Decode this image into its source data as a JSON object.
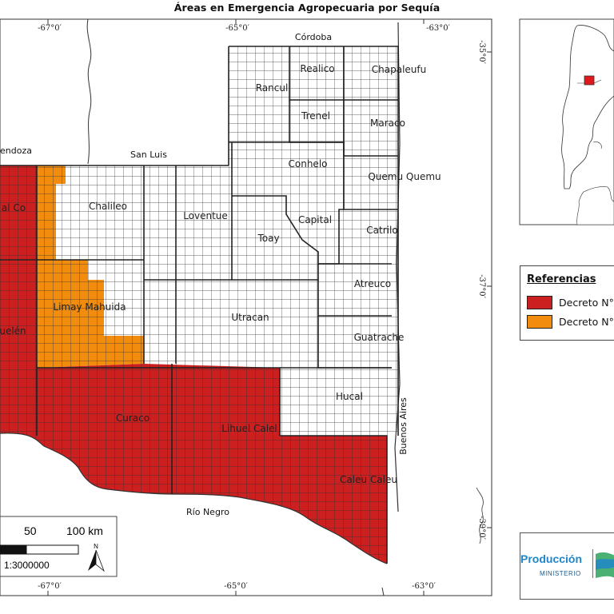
{
  "title": "Áreas en Emergencia Agropecuaria por Sequía",
  "coords": {
    "top": [
      "-67°0′",
      "-65°0′",
      "-63°0′"
    ],
    "bottom": [
      "-67°0′",
      "-65°0′",
      "-63°0′"
    ],
    "right": [
      "-35°0′",
      "-37°0′",
      "-39°0′"
    ]
  },
  "provinces": {
    "cordoba": "Córdoba",
    "mendoza": "endoza",
    "san_luis": "San Luis",
    "rio_negro": "Río Negro",
    "buenos_aires": "Buenos Aires"
  },
  "departments": {
    "realico": "Realico",
    "chapaleufu": "Chapaleufu",
    "rancul": "Rancul",
    "trenel": "Trenel",
    "maraco": "Maraco",
    "conhelo": "Conhelo",
    "quemu_quemu": "Quemu Quemu",
    "chical_co": "al Co",
    "chalileo": "Chalileo",
    "loventue": "Loventue",
    "capital": "Capital",
    "toay": "Toay",
    "catrilo": "Catrilo",
    "atreuco": "Atreuco",
    "limay_mahuida": "Limay Mahuida",
    "puelen": "uelén",
    "utracan": "Utracan",
    "guatrache": "Guatrache",
    "hucal": "Hucal",
    "curaco": "Curaco",
    "lihuel_calel": "Lihuel Calel",
    "caleu_caleu": "Caleu Caleu"
  },
  "legend": {
    "title": "Referencias",
    "items": [
      {
        "label": "Decreto N°",
        "color": "#cc1f1f"
      },
      {
        "label": "Decreto N°",
        "color": "#f28c0f"
      }
    ]
  },
  "scale": {
    "label_50": "50",
    "label_100": "100 km",
    "ratio": "1:3000000",
    "north": "N"
  },
  "logo": {
    "produccion": "Producción",
    "ministerio": "MINISTERIO"
  },
  "colors": {
    "emergency_red": "#cc1f1f",
    "emergency_orange": "#f28c0f",
    "locator_red": "#e0171a"
  }
}
